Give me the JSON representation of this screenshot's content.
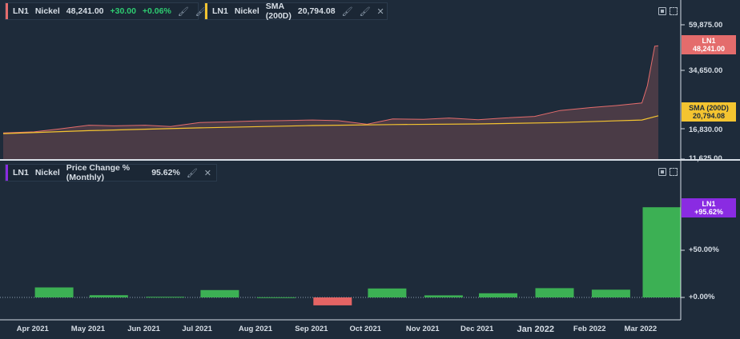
{
  "top_legend": [
    {
      "symbol": "LN1",
      "name": "Nickel",
      "value": "48,241.00",
      "change": "+30.00",
      "change_pct": "+0.06%",
      "accent": "#e46c6c"
    },
    {
      "symbol": "LN1",
      "name": "Nickel",
      "indicator": "SMA (200D)",
      "value": "20,794.08",
      "accent": "#f4c430"
    }
  ],
  "bottom_legend": {
    "symbol": "LN1",
    "name": "Nickel",
    "indicator": "Price Change % (Monthly)",
    "value": "95.62%",
    "accent": "#8a2be2"
  },
  "price_axis": [
    "59,875.00",
    "34,650.00",
    "16,830.00",
    "11,625.00"
  ],
  "pct_axis": [
    "+50.00%",
    "+0.00%"
  ],
  "price_tag": {
    "line1": "LN1",
    "line2": "48,241.00",
    "color": "#e46c6c"
  },
  "sma_tag": {
    "line1": "SMA (200D)",
    "line2": "20,794.08",
    "color": "#f4c430"
  },
  "pct_tag": {
    "line1": "LN1",
    "line2": "+95.62%",
    "color": "#8a2be2"
  },
  "time_axis": [
    "Apr 2021",
    "May 2021",
    "Jun 2021",
    "Jul 2021",
    "Aug 2021",
    "Sep 2021",
    "Oct 2021",
    "Nov 2021",
    "Dec 2021",
    "Jan 2022",
    "Feb 2022",
    "Mar 2022"
  ],
  "chart_data": [
    {
      "type": "area",
      "series": [
        {
          "name": "LN1 Nickel",
          "x": [
            "2021-03-15",
            "2021-04-01",
            "2021-04-15",
            "2021-05-01",
            "2021-05-15",
            "2021-06-01",
            "2021-06-15",
            "2021-07-01",
            "2021-07-15",
            "2021-08-01",
            "2021-08-15",
            "2021-09-01",
            "2021-09-15",
            "2021-10-01",
            "2021-10-15",
            "2021-11-01",
            "2021-11-15",
            "2021-12-01",
            "2021-12-15",
            "2022-01-01",
            "2022-01-15",
            "2022-02-01",
            "2022-02-15",
            "2022-03-01",
            "2022-03-04",
            "2022-03-08",
            "2022-03-10"
          ],
          "values": [
            16100,
            16300,
            16800,
            17900,
            17700,
            17900,
            17500,
            18700,
            18900,
            19200,
            19300,
            19500,
            19300,
            18200,
            19800,
            19700,
            20100,
            19600,
            20100,
            20600,
            22400,
            23300,
            23900,
            24700,
            30000,
            48000,
            48241
          ]
        },
        {
          "name": "SMA (200D)",
          "x": [
            "2021-03-15",
            "2021-05-01",
            "2021-07-01",
            "2021-09-01",
            "2021-10-15",
            "2021-12-01",
            "2022-01-15",
            "2022-03-01",
            "2022-03-10"
          ],
          "values": [
            16000,
            16500,
            17100,
            17800,
            18100,
            18300,
            18700,
            19500,
            20794
          ]
        }
      ],
      "y_ticks": [
        11625,
        16830,
        34650,
        59875
      ]
    },
    {
      "type": "bar",
      "title": "Price Change % (Monthly)",
      "categories": [
        "Apr 2021",
        "May 2021",
        "Jun 2021",
        "Jul 2021",
        "Aug 2021",
        "Sep 2021",
        "Oct 2021",
        "Nov 2021",
        "Dec 2021",
        "Jan 2022",
        "Feb 2022",
        "Mar 2022"
      ],
      "values": [
        10.6,
        2.4,
        0.7,
        7.8,
        0.2,
        -8.4,
        9.5,
        2.2,
        4.4,
        9.8,
        8.2,
        95.62
      ],
      "y_ticks": [
        0,
        50
      ],
      "positive_color": "#3cb054",
      "negative_color": "#e46464"
    }
  ]
}
